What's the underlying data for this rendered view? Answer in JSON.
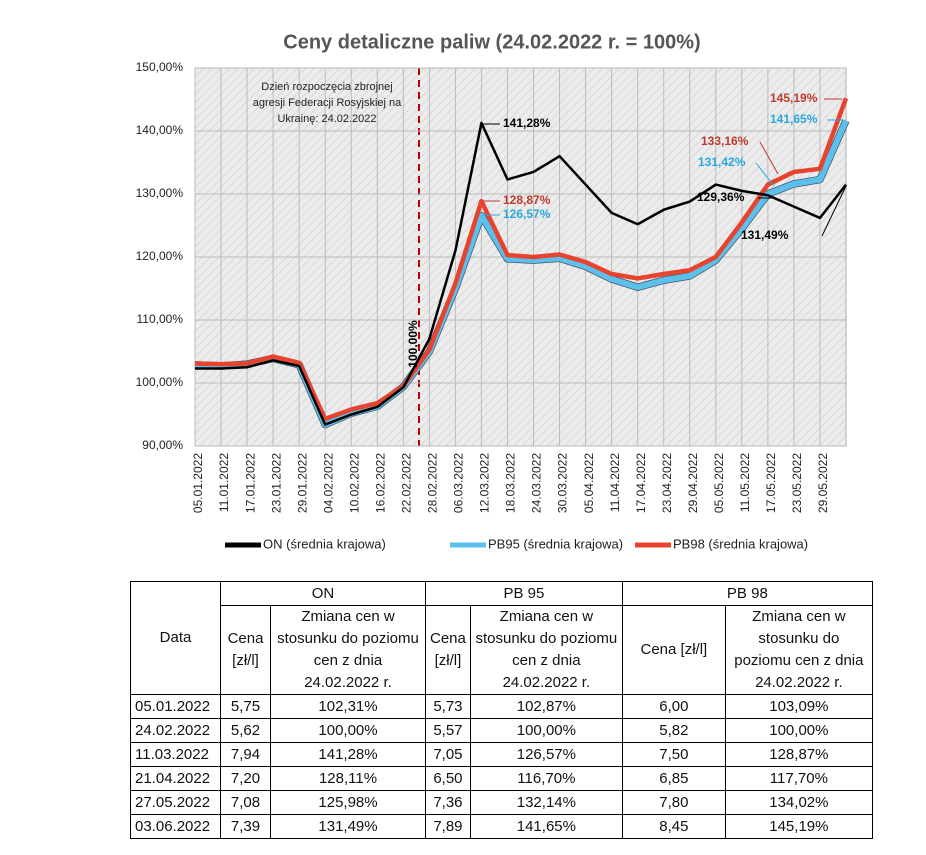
{
  "chart_data": {
    "type": "line",
    "title": "Ceny detaliczne paliw (24.02.2022 r. = 100%)",
    "categories": [
      "05.01.2022",
      "11.01.2022",
      "17.01.2022",
      "23.01.2022",
      "29.01.2022",
      "04.02.2022",
      "10.02.2022",
      "16.02.2022",
      "22.02.2022",
      "28.02.2022",
      "06.03.2022",
      "12.03.2022",
      "18.03.2022",
      "24.03.2022",
      "30.03.2022",
      "05.04.2022",
      "11.04.2022",
      "17.04.2022",
      "23.04.2022",
      "29.04.2022",
      "05.05.2022",
      "11.05.2022",
      "17.05.2022",
      "23.05.2022",
      "29.05.2022",
      null
    ],
    "series": [
      {
        "name": "ON (średnia krajowa)",
        "color": "#000000",
        "values": [
          102.31,
          102.3,
          102.5,
          103.6,
          102.7,
          93.4,
          95.0,
          96.2,
          99.3,
          107,
          121,
          141.28,
          132.3,
          133.5,
          136.0,
          131.5,
          127.0,
          125.2,
          127.5,
          128.8,
          131.5,
          130.5,
          129.8,
          128.0,
          126.2,
          131.49
        ]
      },
      {
        "name": "PB95 (średnia krajowa)",
        "color": "#5bc1ec",
        "values": [
          102.87,
          102.7,
          103.0,
          103.9,
          102.9,
          93.4,
          95.2,
          96.3,
          99.4,
          105,
          115,
          126.57,
          119.7,
          119.5,
          119.8,
          118.5,
          116.5,
          115.2,
          116.3,
          117.0,
          119.5,
          124.5,
          130.0,
          131.6,
          132.3,
          141.65
        ]
      },
      {
        "name": "PB98 (średnia krajowa)",
        "color": "#e8432e",
        "values": [
          103.09,
          103.0,
          103.1,
          104.2,
          103.2,
          94.3,
          95.8,
          96.8,
          99.5,
          105.3,
          115.8,
          128.87,
          120.3,
          120.0,
          120.4,
          119.2,
          117.3,
          116.6,
          117.3,
          117.9,
          120.0,
          125.5,
          131.5,
          133.5,
          134.0,
          145.19
        ]
      }
    ],
    "ylim": [
      90,
      150
    ],
    "yticks": [
      {
        "value": 90,
        "label": "90,00%"
      },
      {
        "value": 100,
        "label": "100,00%"
      },
      {
        "value": 110,
        "label": "110,00%"
      },
      {
        "value": 120,
        "label": "120,00%"
      },
      {
        "value": 130,
        "label": "130,00%"
      },
      {
        "value": 140,
        "label": "140,00%"
      },
      {
        "value": 150,
        "label": "150,00%"
      }
    ],
    "grid": true,
    "legend": "bottom",
    "annotations": [
      {
        "text": "Dzień rozpoczęcia zbrojnej"
      },
      {
        "text": "agresji Federacji Rosyjskiej na"
      },
      {
        "text": "Ukrainę: 24.02.2022"
      },
      {
        "text": "100,00%"
      },
      {
        "text": "141,28%"
      },
      {
        "text": "128,87%"
      },
      {
        "text": "126,57%"
      },
      {
        "text": "129,36%"
      },
      {
        "text": "131,49%"
      },
      {
        "text": "133,16%"
      },
      {
        "text": "131,42%"
      },
      {
        "text": "145,19%"
      },
      {
        "text": "141,65%"
      }
    ]
  },
  "table": {
    "corner": "Data",
    "groups": [
      "ON",
      "PB 95",
      "PB 98"
    ],
    "subheaders": [
      "Cena [zł/l]",
      "Zmiana cen w stosunku do poziomu cen z dnia 24.02.2022 r.",
      "Cena [zł/l]",
      "Zmiana cen w stosunku do poziomu cen z dnia 24.02.2022 r.",
      "Cena [zł/l]",
      "Zmiana cen w stosunku do poziomu cen z dnia 24.02.2022 r."
    ],
    "rows": [
      [
        "05.01.2022",
        "5,75",
        "102,31%",
        "5,73",
        "102,87%",
        "6,00",
        "103,09%"
      ],
      [
        "24.02.2022",
        "5,62",
        "100,00%",
        "5,57",
        "100,00%",
        "5,82",
        "100,00%"
      ],
      [
        "11.03.2022",
        "7,94",
        "141,28%",
        "7,05",
        "126,57%",
        "7,50",
        "128,87%"
      ],
      [
        "21.04.2022",
        "7,20",
        "128,11%",
        "6,50",
        "116,70%",
        "6,85",
        "117,70%"
      ],
      [
        "27.05.2022",
        "7,08",
        "125,98%",
        "7,36",
        "132,14%",
        "7,80",
        "134,02%"
      ],
      [
        "03.06.2022",
        "7,39",
        "131,49%",
        "7,89",
        "141,65%",
        "8,45",
        "145,19%"
      ]
    ]
  }
}
